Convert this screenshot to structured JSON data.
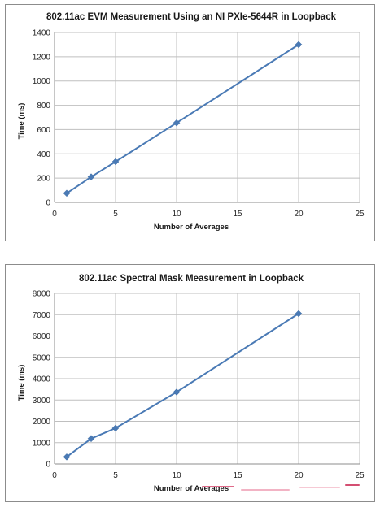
{
  "chart_data": [
    {
      "type": "line",
      "title": "802.11ac EVM Measurement Using an NI PXIe-5644R in Loopback",
      "xlabel": "Number of Averages",
      "ylabel": "Time (ms)",
      "xlim": [
        0,
        25
      ],
      "ylim": [
        0,
        1400
      ],
      "x_ticks": [
        0,
        5,
        10,
        15,
        20,
        25
      ],
      "y_ticks": [
        0,
        200,
        400,
        600,
        800,
        1000,
        1200,
        1400
      ],
      "grid": true,
      "legend": "none",
      "series": [
        {
          "x": [
            1,
            3,
            5,
            10,
            20
          ],
          "y": [
            75,
            210,
            335,
            655,
            1300
          ],
          "color": "#4a7ab5"
        }
      ]
    },
    {
      "type": "line",
      "title": "802.11ac Spectral Mask Measurement in Loopback",
      "xlabel": "Number of Averages",
      "ylabel": "Time (ms)",
      "xlim": [
        0,
        25
      ],
      "ylim": [
        0,
        8000
      ],
      "x_ticks": [
        0,
        5,
        10,
        15,
        20,
        25
      ],
      "y_ticks": [
        0,
        1000,
        2000,
        3000,
        4000,
        5000,
        6000,
        7000,
        8000
      ],
      "grid": true,
      "legend": "none",
      "series": [
        {
          "x": [
            1,
            3,
            5,
            10,
            20
          ],
          "y": [
            330,
            1190,
            1680,
            3370,
            7050
          ],
          "color": "#4a7ab5"
        }
      ]
    }
  ]
}
